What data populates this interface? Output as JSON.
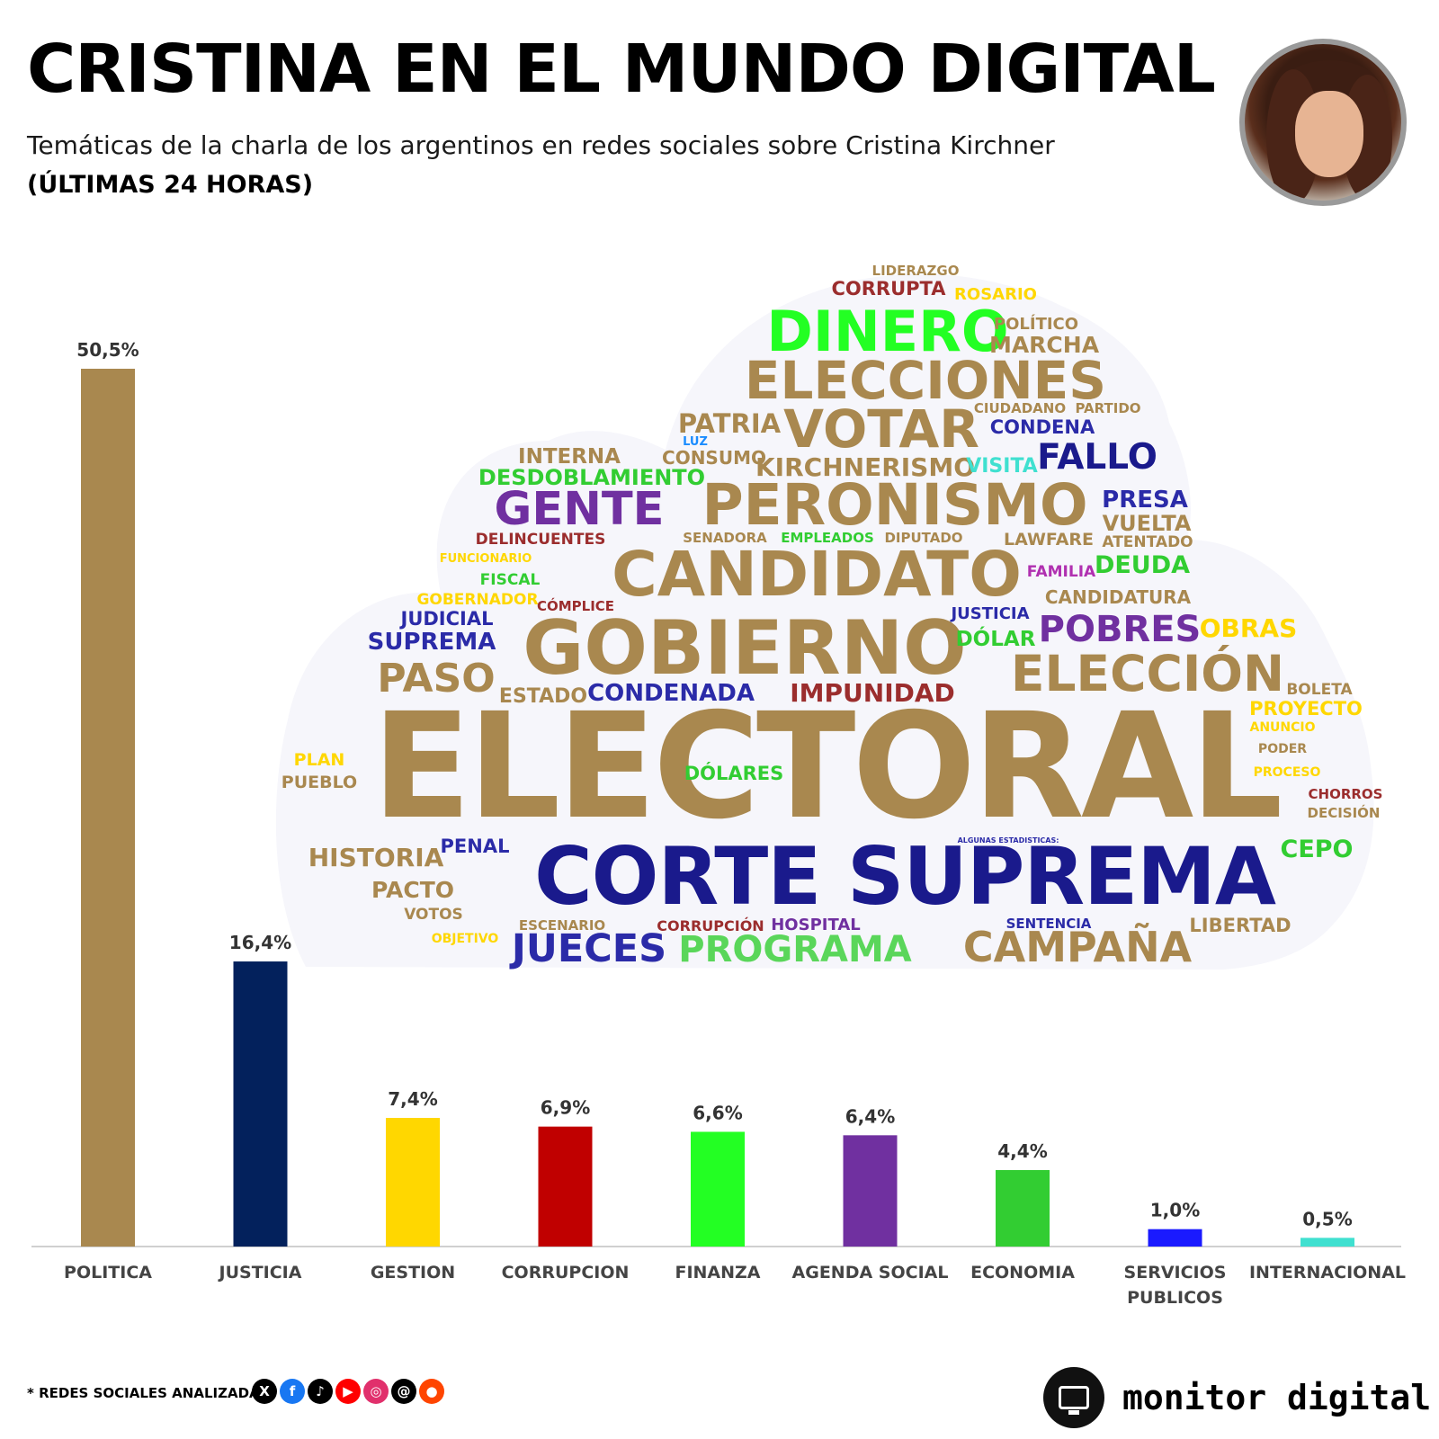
{
  "header": {
    "title": "CRISTINA EN EL MUNDO DIGITAL",
    "subtitle": "Temáticas de la charla de los argentinos en redes sociales sobre Cristina Kirchner",
    "period": "(ÚLTIMAS 24 HORAS)"
  },
  "chart_data": {
    "type": "bar",
    "categories": [
      "POLITICA",
      "JUSTICIA",
      "GESTION",
      "CORRUPCION",
      "FINANZA",
      "AGENDA SOCIAL",
      "ECONOMIA",
      "SERVICIOS PUBLICOS",
      "INTERNACIONAL"
    ],
    "category_lines": [
      [
        "POLITICA"
      ],
      [
        "JUSTICIA"
      ],
      [
        "GESTION"
      ],
      [
        "CORRUPCION"
      ],
      [
        "FINANZA"
      ],
      [
        "AGENDA SOCIAL"
      ],
      [
        "ECONOMIA"
      ],
      [
        "SERVICIOS",
        "PUBLICOS"
      ],
      [
        "INTERNACIONAL"
      ]
    ],
    "values": [
      50.5,
      16.4,
      7.4,
      6.9,
      6.6,
      6.4,
      4.4,
      1.0,
      0.5
    ],
    "value_labels": [
      "50,5%",
      "16,4%",
      "7,4%",
      "6,9%",
      "6,6%",
      "6,4%",
      "4,4%",
      "1,0%",
      "0,5%"
    ],
    "colors": [
      "#a9884f",
      "#03215c",
      "#ffd700",
      "#c00000",
      "#23ff23",
      "#7030a0",
      "#32cd32",
      "#1a1aff",
      "#40e0d0"
    ],
    "ylim": [
      0,
      50.5
    ],
    "grid": false,
    "legend": "none"
  },
  "word_cloud": [
    {
      "text": "LIDERAZGO",
      "color": "#a9884f"
    },
    {
      "text": "CORRUPTA",
      "color": "#9b2d2d"
    },
    {
      "text": "ROSARIO",
      "color": "#ffd700"
    },
    {
      "text": "DINERO",
      "color": "#23ff23"
    },
    {
      "text": "POLÍTICO",
      "color": "#a9884f"
    },
    {
      "text": "MARCHA",
      "color": "#a9884f"
    },
    {
      "text": "ELECCIONES",
      "color": "#a9884f"
    },
    {
      "text": "CIUDADANO",
      "color": "#a9884f"
    },
    {
      "text": "PARTIDO",
      "color": "#a9884f"
    },
    {
      "text": "PATRIA",
      "color": "#a9884f"
    },
    {
      "text": "VOTAR",
      "color": "#a9884f"
    },
    {
      "text": "CONDENA",
      "color": "#2b2ba8"
    },
    {
      "text": "LUZ",
      "color": "#1a8cff"
    },
    {
      "text": "INTERNA",
      "color": "#a9884f"
    },
    {
      "text": "CONSUMO",
      "color": "#a9884f"
    },
    {
      "text": "KIRCHNERISMO",
      "color": "#a9884f"
    },
    {
      "text": "VISITA",
      "color": "#40e0d0"
    },
    {
      "text": "FALLO",
      "color": "#1a1a8c"
    },
    {
      "text": "DESDOBLAMIENTO",
      "color": "#32cd32"
    },
    {
      "text": "GENTE",
      "color": "#7030a0"
    },
    {
      "text": "PERONISMO",
      "color": "#a9884f"
    },
    {
      "text": "PRESA",
      "color": "#2b2ba8"
    },
    {
      "text": "VUELTA",
      "color": "#a9884f"
    },
    {
      "text": "DELINCUENTES",
      "color": "#9b2d2d"
    },
    {
      "text": "SENADORA",
      "color": "#a9884f"
    },
    {
      "text": "EMPLEADOS",
      "color": "#32cd32"
    },
    {
      "text": "DIPUTADO",
      "color": "#a9884f"
    },
    {
      "text": "LAWFARE",
      "color": "#a9884f"
    },
    {
      "text": "ATENTADO",
      "color": "#a9884f"
    },
    {
      "text": "FUNCIONARIO",
      "color": "#ffd700"
    },
    {
      "text": "CANDIDATO",
      "color": "#a9884f"
    },
    {
      "text": "FAMILIA",
      "color": "#b030b0"
    },
    {
      "text": "DEUDA",
      "color": "#32cd32"
    },
    {
      "text": "FISCAL",
      "color": "#32cd32"
    },
    {
      "text": "GOBERNADOR",
      "color": "#ffd700"
    },
    {
      "text": "CÓMPLICE",
      "color": "#9b2d2d"
    },
    {
      "text": "CANDIDATURA",
      "color": "#a9884f"
    },
    {
      "text": "JUDICIAL",
      "color": "#2b2ba8"
    },
    {
      "text": "JUSTICIA",
      "color": "#2b2ba8"
    },
    {
      "text": "POBRES",
      "color": "#7030a0"
    },
    {
      "text": "OBRAS",
      "color": "#ffd700"
    },
    {
      "text": "SUPREMA",
      "color": "#2b2ba8"
    },
    {
      "text": "GOBIERNO",
      "color": "#a9884f"
    },
    {
      "text": "DÓLAR",
      "color": "#32cd32"
    },
    {
      "text": "ELECCIÓN",
      "color": "#a9884f"
    },
    {
      "text": "PASO",
      "color": "#a9884f"
    },
    {
      "text": "ESTADO",
      "color": "#a9884f"
    },
    {
      "text": "CONDENADA",
      "color": "#2b2ba8"
    },
    {
      "text": "IMPUNIDAD",
      "color": "#9b2d2d"
    },
    {
      "text": "BOLETA",
      "color": "#a9884f"
    },
    {
      "text": "PROYECTO",
      "color": "#ffd700"
    },
    {
      "text": "ANUNCIO",
      "color": "#ffd700"
    },
    {
      "text": "ELECTORAL",
      "color": "#a9884f"
    },
    {
      "text": "PODER",
      "color": "#a9884f"
    },
    {
      "text": "PLAN",
      "color": "#ffd700"
    },
    {
      "text": "PUEBLO",
      "color": "#a9884f"
    },
    {
      "text": "DÓLARES",
      "color": "#32cd32"
    },
    {
      "text": "PROCESO",
      "color": "#ffd700"
    },
    {
      "text": "CHORROS",
      "color": "#9b2d2d"
    },
    {
      "text": "DECISIÓN",
      "color": "#a9884f"
    },
    {
      "text": "ALGUNAS ESTADISTICAS:",
      "color": "#2b2ba8"
    },
    {
      "text": "HISTORIA",
      "color": "#a9884f"
    },
    {
      "text": "PENAL",
      "color": "#2b2ba8"
    },
    {
      "text": "CEPO",
      "color": "#32cd32"
    },
    {
      "text": "CORTE SUPREMA",
      "color": "#1a1a8c"
    },
    {
      "text": "PACTO",
      "color": "#a9884f"
    },
    {
      "text": "VOTOS",
      "color": "#a9884f"
    },
    {
      "text": "ESCENARIO",
      "color": "#a9884f"
    },
    {
      "text": "CORRUPCIÓN",
      "color": "#9b2d2d"
    },
    {
      "text": "HOSPITAL",
      "color": "#7030a0"
    },
    {
      "text": "SENTENCIA",
      "color": "#2b2ba8"
    },
    {
      "text": "LIBERTAD",
      "color": "#a9884f"
    },
    {
      "text": "OBJETIVO",
      "color": "#ffd700"
    },
    {
      "text": "JUECES",
      "color": "#2b2ba8"
    },
    {
      "text": "PROGRAMA",
      "color": "#5ad65a"
    },
    {
      "text": "CAMPAÑA",
      "color": "#a9884f"
    }
  ],
  "footer": {
    "note": "* REDES SOCIALES ANALIZADAS",
    "networks": [
      {
        "icon": "x-icon",
        "glyph": "X",
        "color": "#000000"
      },
      {
        "icon": "facebook-icon",
        "glyph": "f",
        "color": "#1877f2"
      },
      {
        "icon": "tiktok-icon",
        "glyph": "♪",
        "color": "#000000"
      },
      {
        "icon": "youtube-icon",
        "glyph": "▶",
        "color": "#ff0000"
      },
      {
        "icon": "instagram-icon",
        "glyph": "◎",
        "color": "#e1306c"
      },
      {
        "icon": "threads-icon",
        "glyph": "@",
        "color": "#000000"
      },
      {
        "icon": "reddit-icon",
        "glyph": "●",
        "color": "#ff4500"
      }
    ],
    "brand": "monitor digital",
    "brand_icon": "monitor-icon"
  }
}
